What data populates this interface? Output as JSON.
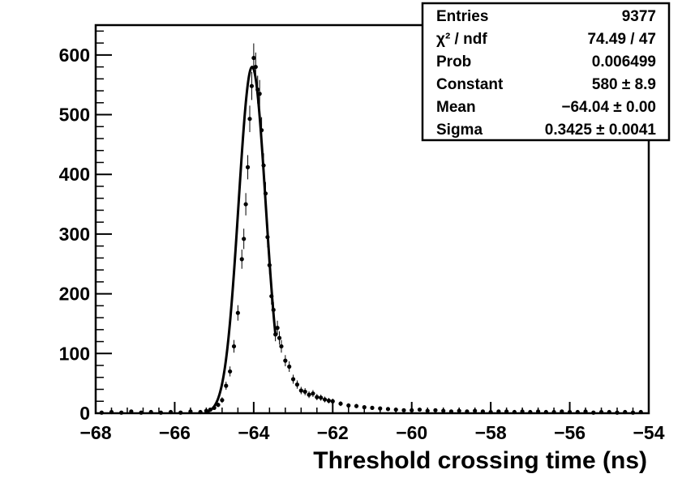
{
  "chart_data": {
    "type": "scatter",
    "xlabel": "Threshold crossing time (ns)",
    "ylabel": "",
    "xlim": [
      -68,
      -54
    ],
    "ylim": [
      0,
      650
    ],
    "grid": false,
    "x_ticks": [
      -68,
      -66,
      -64,
      -62,
      -60,
      -58,
      -56,
      -54
    ],
    "x_tick_labels": [
      "−68",
      "−66",
      "−64",
      "−62",
      "−60",
      "−58",
      "−56",
      "−54"
    ],
    "y_ticks": [
      0,
      100,
      200,
      300,
      400,
      500,
      600
    ],
    "y_tick_labels": [
      "0",
      "100",
      "200",
      "300",
      "400",
      "500",
      "600"
    ],
    "series": [
      {
        "type": "scatter_errorbars",
        "points": [
          [
            -67.85,
            1
          ],
          [
            -67.6,
            2
          ],
          [
            -67.35,
            1
          ],
          [
            -67.1,
            3
          ],
          [
            -66.85,
            1
          ],
          [
            -66.6,
            2
          ],
          [
            -66.35,
            1
          ],
          [
            -66.1,
            2
          ],
          [
            -65.85,
            1
          ],
          [
            -65.6,
            3
          ],
          [
            -65.35,
            2
          ],
          [
            -65.2,
            4
          ],
          [
            -65.1,
            6
          ],
          [
            -65.0,
            9
          ],
          [
            -64.9,
            14
          ],
          [
            -64.8,
            22
          ],
          [
            -64.7,
            46
          ],
          [
            -64.6,
            70
          ],
          [
            -64.5,
            112
          ],
          [
            -64.4,
            168
          ],
          [
            -64.3,
            258
          ],
          [
            -64.25,
            292
          ],
          [
            -64.2,
            350
          ],
          [
            -64.15,
            412
          ],
          [
            -64.1,
            493
          ],
          [
            -64.05,
            548
          ],
          [
            -64.0,
            595
          ],
          [
            -63.95,
            580
          ],
          [
            -63.9,
            542
          ],
          [
            -63.85,
            535
          ],
          [
            -63.8,
            474
          ],
          [
            -63.75,
            415
          ],
          [
            -63.7,
            368
          ],
          [
            -63.65,
            295
          ],
          [
            -63.6,
            248
          ],
          [
            -63.55,
            196
          ],
          [
            -63.5,
            173
          ],
          [
            -63.45,
            132
          ],
          [
            -63.4,
            143
          ],
          [
            -63.35,
            126
          ],
          [
            -63.3,
            112
          ],
          [
            -63.2,
            88
          ],
          [
            -63.1,
            78
          ],
          [
            -63.0,
            57
          ],
          [
            -62.9,
            48
          ],
          [
            -62.8,
            38
          ],
          [
            -62.7,
            36
          ],
          [
            -62.6,
            31
          ],
          [
            -62.5,
            33
          ],
          [
            -62.4,
            27
          ],
          [
            -62.3,
            26
          ],
          [
            -62.2,
            23
          ],
          [
            -62.1,
            21
          ],
          [
            -62.0,
            20
          ],
          [
            -61.8,
            16
          ],
          [
            -61.6,
            13
          ],
          [
            -61.4,
            12
          ],
          [
            -61.2,
            10
          ],
          [
            -61.0,
            9
          ],
          [
            -60.8,
            8
          ],
          [
            -60.6,
            7
          ],
          [
            -60.4,
            6
          ],
          [
            -60.2,
            5
          ],
          [
            -60.0,
            5
          ],
          [
            -59.8,
            6
          ],
          [
            -59.6,
            4
          ],
          [
            -59.4,
            5
          ],
          [
            -59.2,
            4
          ],
          [
            -59.0,
            3
          ],
          [
            -58.8,
            4
          ],
          [
            -58.6,
            3
          ],
          [
            -58.4,
            4
          ],
          [
            -58.2,
            3
          ],
          [
            -58.0,
            2
          ],
          [
            -57.8,
            3
          ],
          [
            -57.6,
            3
          ],
          [
            -57.4,
            2
          ],
          [
            -57.2,
            3
          ],
          [
            -57.0,
            2
          ],
          [
            -56.8,
            3
          ],
          [
            -56.6,
            2
          ],
          [
            -56.4,
            2
          ],
          [
            -56.2,
            3
          ],
          [
            -56.0,
            2
          ],
          [
            -55.8,
            2
          ],
          [
            -55.6,
            3
          ],
          [
            -55.4,
            1
          ],
          [
            -55.2,
            2
          ],
          [
            -55.0,
            2
          ],
          [
            -54.8,
            1
          ],
          [
            -54.6,
            2
          ],
          [
            -54.4,
            1
          ],
          [
            -54.2,
            2
          ]
        ]
      },
      {
        "type": "gaussian_fit",
        "constant": 580,
        "mean": -64.04,
        "sigma": 0.3425,
        "x_range": [
          -65.2,
          -63.45
        ]
      }
    ]
  },
  "stats_box": {
    "rows": [
      {
        "label": "Entries",
        "value": "9377"
      },
      {
        "label": "χ² / ndf",
        "value": "74.49 / 47"
      },
      {
        "label": "Prob",
        "value": "0.006499"
      },
      {
        "label": "Constant",
        "value": "580 ± 8.9"
      },
      {
        "label": "Mean",
        "value": "−64.04 ± 0.00"
      },
      {
        "label": "Sigma",
        "value": "0.3425 ± 0.0041"
      }
    ]
  }
}
